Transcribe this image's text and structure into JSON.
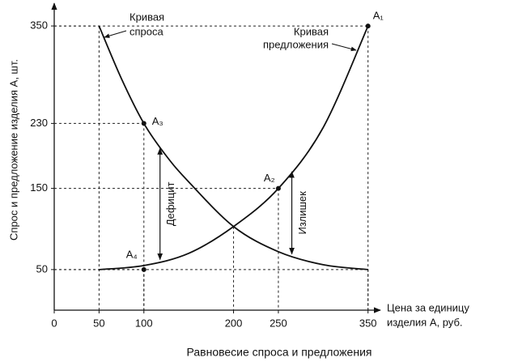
{
  "chart_data": {
    "type": "line",
    "title": "Равновесие спроса и предложения",
    "x_label": [
      "Цена за единицу",
      "изделия А, руб."
    ],
    "y_label": "Спрос и предложение изделия А, шт.",
    "xlim": [
      0,
      362
    ],
    "ylim": [
      0,
      378
    ],
    "xticks": [
      0,
      50,
      100,
      200,
      250,
      350
    ],
    "yticks": [
      50,
      150,
      230,
      350
    ],
    "series": [
      {
        "label": [
          "Кривая",
          "спроса"
        ],
        "color": "#111",
        "x": [
          50,
          75,
          100,
          125,
          150,
          200,
          250,
          300,
          350
        ],
        "values": [
          350,
          285,
          230,
          190,
          158,
          103,
          72,
          56,
          50
        ]
      },
      {
        "label": [
          "Кривая",
          "предложения"
        ],
        "color": "#111",
        "x": [
          50,
          100,
          150,
          200,
          250,
          300,
          350
        ],
        "values": [
          50,
          55,
          70,
          103,
          150,
          225,
          350
        ]
      }
    ],
    "points": [
      {
        "label": "A₁",
        "x": 350,
        "y": 350
      },
      {
        "label": "A₂",
        "x": 250,
        "y": 150
      },
      {
        "label": "A₃",
        "x": 100,
        "y": 230
      },
      {
        "label": "A₄",
        "x": 100,
        "y": 50
      }
    ],
    "annotations": [
      {
        "text": "Дефицит",
        "x": 118
      },
      {
        "text": "Излишек",
        "x": 265
      }
    ]
  }
}
